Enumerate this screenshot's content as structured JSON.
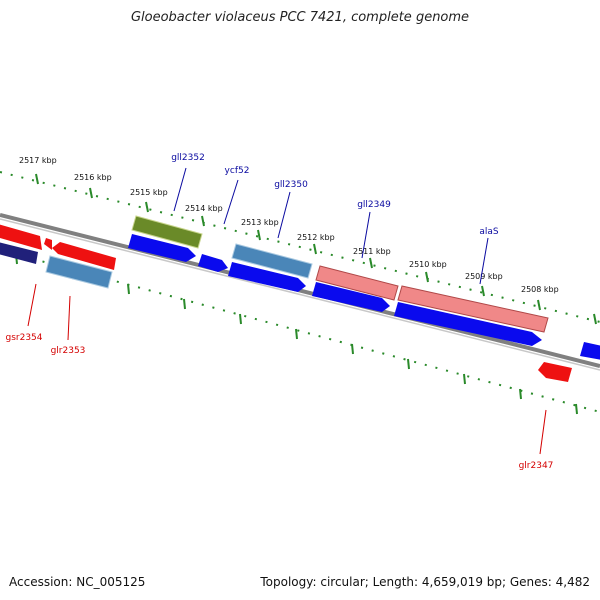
{
  "title": "Gloeobacter violaceus PCC 7421, complete genome",
  "footer": {
    "accession": "Accession: NC_005125",
    "topology": "Topology: circular; Length: 4,659,019 bp; Genes: 4,482"
  },
  "ruler": [
    "2517 kbp",
    "2516 kbp",
    "2515 kbp",
    "2514 kbp",
    "2513 kbp",
    "2512 kbp",
    "2511 kbp",
    "2510 kbp",
    "2509 kbp",
    "2508 kbp"
  ],
  "genes_top": [
    "gll2352",
    "ycf52",
    "gll2350",
    "gll2349",
    "alaS"
  ],
  "genes_bottom": [
    "gsr2354",
    "glr2353",
    "glr2347"
  ],
  "colors": {
    "cds_forward": "#0a0aee",
    "cds_reverse": "#ee1111",
    "steelblue": "#4a86b8",
    "olive": "#6a8a28",
    "salmon": "#f08888",
    "navy": "#20207a",
    "backbone": "#808080",
    "ticks": "#2a8a2a"
  }
}
